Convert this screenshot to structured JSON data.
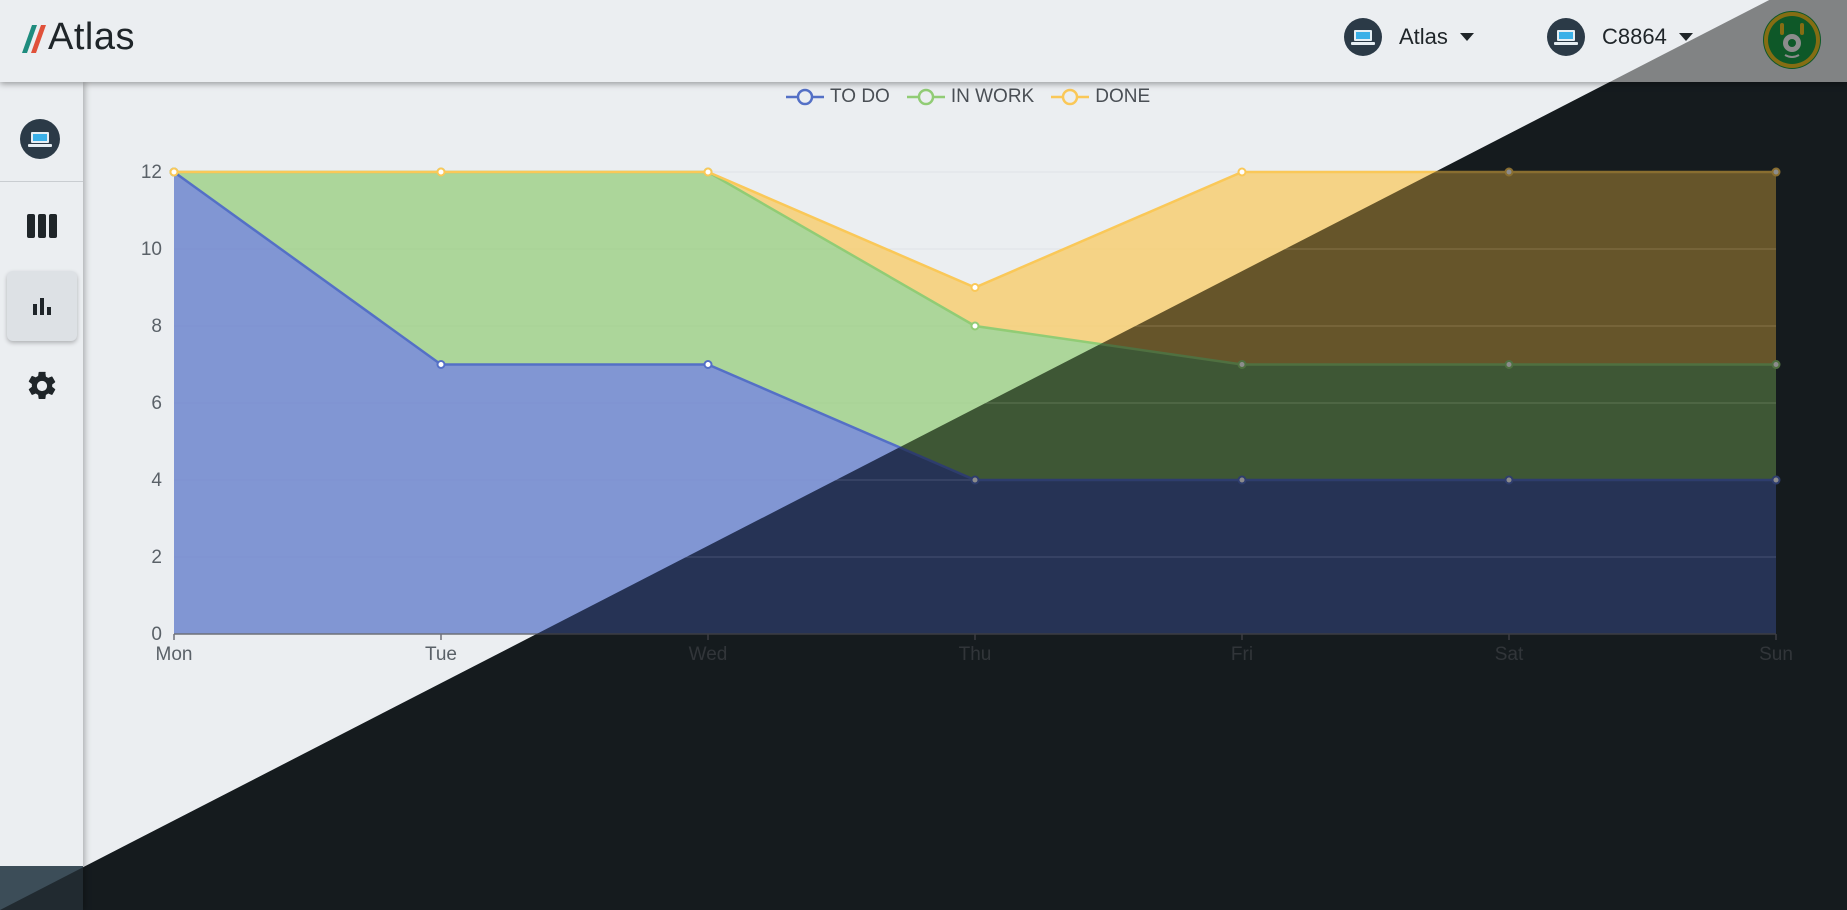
{
  "app": {
    "logo_text": "Atlas"
  },
  "header": {
    "workspace_selector": {
      "label": "Atlas",
      "icon": "laptop-icon"
    },
    "device_selector": {
      "label": "C8864",
      "icon": "laptop-icon"
    },
    "user_avatar_icon": "alien-avatar-icon"
  },
  "sidebar": {
    "items": [
      {
        "name": "project",
        "icon": "laptop-icon"
      },
      {
        "name": "board",
        "icon": "columns-icon"
      },
      {
        "name": "charts",
        "icon": "bar-chart-icon",
        "active": true
      },
      {
        "name": "settings",
        "icon": "gear-icon"
      }
    ]
  },
  "colors": {
    "todo": "#5470c6",
    "in_work": "#91cc75",
    "done": "#fac858",
    "background_light": "#ebeef1",
    "background_dark": "#273238"
  },
  "chart_data": {
    "type": "area",
    "stacked": true,
    "categories": [
      "Mon",
      "Tue",
      "Wed",
      "Thu",
      "Fri",
      "Sat",
      "Sun"
    ],
    "ylim": [
      0,
      12
    ],
    "yticks": [
      0,
      2,
      4,
      6,
      8,
      10,
      12
    ],
    "legend_position": "top-center",
    "series": [
      {
        "name": "TO DO",
        "values": [
          12,
          7,
          7,
          4,
          4,
          4,
          4
        ]
      },
      {
        "name": "IN WORK",
        "values": [
          0,
          5,
          5,
          4,
          3,
          3,
          3
        ]
      },
      {
        "name": "DONE",
        "values": [
          0,
          0,
          0,
          1,
          5,
          5,
          5
        ]
      }
    ]
  }
}
